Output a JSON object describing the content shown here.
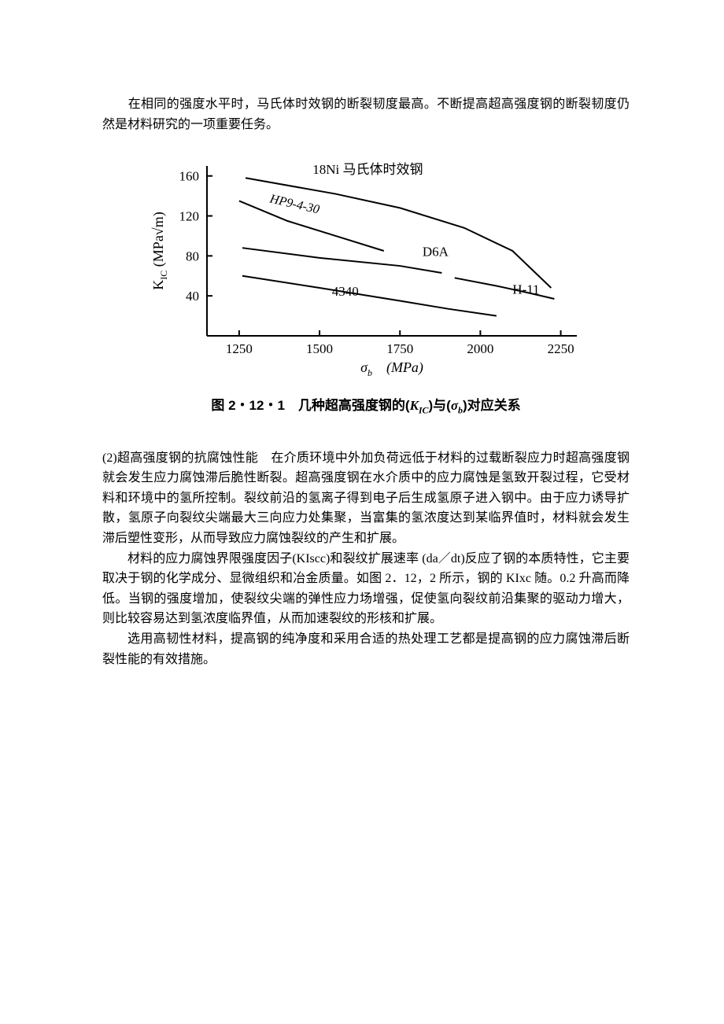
{
  "intro": "　　在相同的强度水平时，马氏体时效钢的断裂韧度最高。不断提高超高强度钢的断裂韧度仍然是材料研究的一项重要任务。",
  "chart": {
    "type": "line",
    "title": "图 2・12・1　几种超高强度钢的(K_IC)与(σ_b)对应关系",
    "xlabel": "σ_b　(MPa)",
    "ylabel": "K_IC (MPa√m)",
    "xlim": [
      1150,
      2300
    ],
    "ylim": [
      0,
      170
    ],
    "xticks": [
      1250,
      1500,
      1750,
      2000,
      2250
    ],
    "yticks": [
      40,
      80,
      120,
      160
    ],
    "background_color": "#ffffff",
    "axis_color": "#000000",
    "line_color": "#000000",
    "line_width": 2,
    "font_family_axis": "Times New Roman",
    "font_size_tick": 17,
    "font_size_label": 18,
    "series": [
      {
        "name": "18Ni 马氏体时效钢",
        "label_pos": [
          1650,
          162
        ],
        "points": [
          [
            1270,
            158
          ],
          [
            1550,
            142
          ],
          [
            1750,
            128
          ],
          [
            1950,
            108
          ],
          [
            2100,
            85
          ],
          [
            2220,
            48
          ]
        ]
      },
      {
        "name": "HP9-4-30",
        "label_pos": [
          1420,
          128
        ],
        "points": [
          [
            1250,
            135
          ],
          [
            1400,
            115
          ],
          [
            1550,
            100
          ],
          [
            1700,
            85
          ]
        ]
      },
      {
        "name": "D6A",
        "label_pos": [
          1820,
          80
        ],
        "points": [
          [
            1260,
            88
          ],
          [
            1500,
            78
          ],
          [
            1750,
            70
          ],
          [
            1880,
            63
          ]
        ]
      },
      {
        "name": "4340",
        "label_pos": [
          1580,
          40
        ],
        "points": [
          [
            1260,
            60
          ],
          [
            1500,
            48
          ],
          [
            1750,
            35
          ],
          [
            1900,
            27
          ],
          [
            2050,
            20
          ]
        ]
      },
      {
        "name": "H-11",
        "label_pos": [
          2100,
          42
        ],
        "points": [
          [
            1920,
            58
          ],
          [
            2050,
            50
          ],
          [
            2150,
            43
          ],
          [
            2230,
            37
          ]
        ]
      }
    ]
  },
  "caption_prefix": "图 2・12・1　几种超高强度钢的(",
  "caption_mid": ")与(",
  "caption_suffix": ")对应关系",
  "k_var": "K",
  "k_sub": "IC",
  "sigma_var": "σ",
  "sigma_sub": "b",
  "p1": "(2)超高强度钢的抗腐蚀性能　在介质环境中外加负荷远低于材料的过载断裂应力时超高强度钢就会发生应力腐蚀滞后脆性断裂。超高强度钢在水介质中的应力腐蚀是氢致开裂过程，它受材料和环境中的氢所控制。裂纹前沿的氢离子得到电子后生成氢原子进入钢中。由于应力诱导扩散，氢原子向裂纹尖端最大三向应力处集聚，当富集的氢浓度达到某临界值时，材料就会发生滞后塑性变形，从而导致应力腐蚀裂纹的产生和扩展。",
  "p2": "材料的应力腐蚀界限强度因子(KIscc)和裂纹扩展速率 (da／dt)反应了钢的本质特性，它主要取决于钢的化学成分、显微组织和冶金质量。如图 2．12，2 所示，钢的 KIxc 随。0.2 升高而降低。当钢的强度增加，使裂纹尖端的弹性应力场增强，促使氢向裂纹前沿集聚的驱动力增大，则比较容易达到氢浓度临界值，从而加速裂纹的形核和扩展。",
  "p3": "选用高韧性材料，提高钢的纯净度和采用合适的热处理工艺都是提高钢的应力腐蚀滞后断裂性能的有效措施。"
}
